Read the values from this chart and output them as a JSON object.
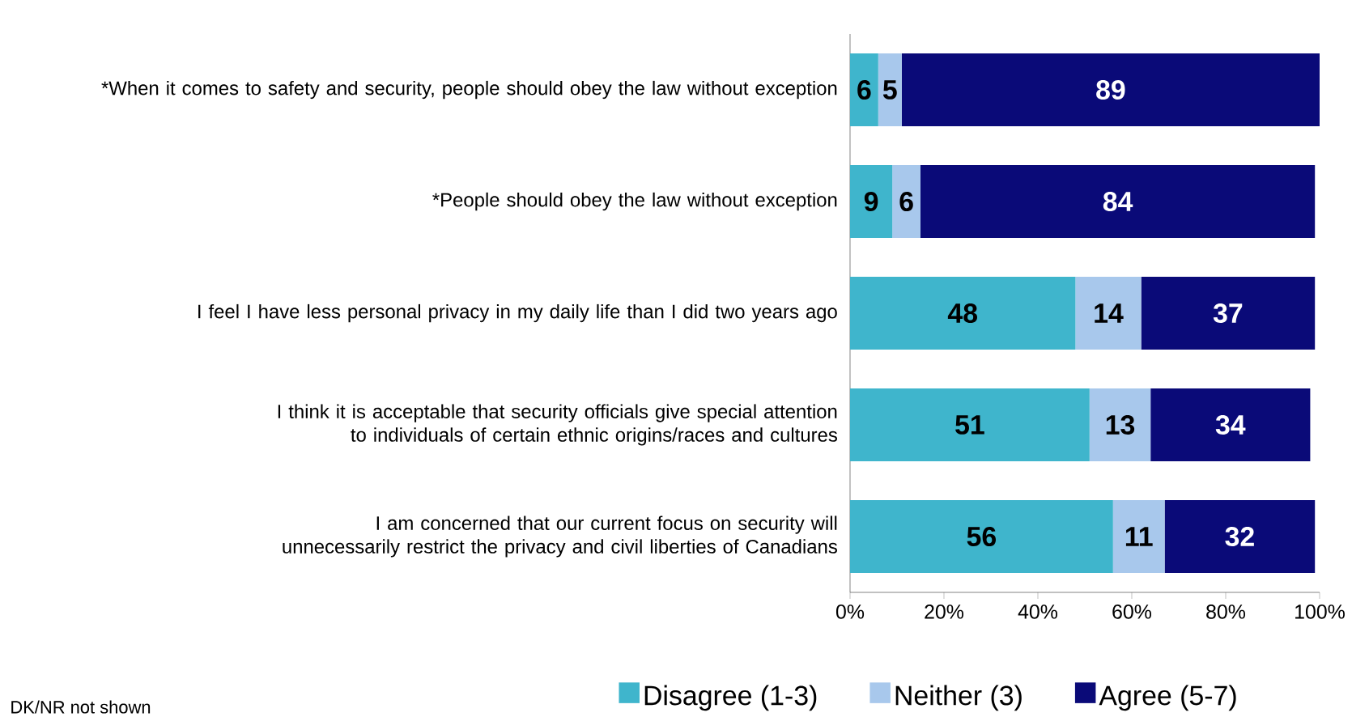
{
  "chart_data": {
    "type": "bar",
    "orientation": "horizontal",
    "stacked": true,
    "categories": [
      "*When it comes to safety and security, people should obey the law without exception",
      "*People should obey the law without exception",
      "I feel I have less personal privacy in my daily life than I did two years ago",
      "I think it is acceptable that security officials give special attention to individuals of certain ethnic origins/races and cultures",
      "I am concerned that our current focus on security will unnecessarily restrict the privacy and civil liberties of Canadians"
    ],
    "series": [
      {
        "name": "Disagree (1-3)",
        "color": "#3fb5cc",
        "values": [
          6,
          9,
          48,
          51,
          56
        ]
      },
      {
        "name": "Neither (3)",
        "color": "#a8c8ec",
        "values": [
          5,
          6,
          14,
          13,
          11
        ]
      },
      {
        "name": "Agree (5-7)",
        "color": "#0a0a78",
        "values": [
          89,
          84,
          37,
          34,
          32
        ]
      }
    ],
    "xlim": [
      0,
      100
    ],
    "xticks": [
      {
        "value": 0,
        "label": "0%"
      },
      {
        "value": 20,
        "label": "20%"
      },
      {
        "value": 40,
        "label": "40%"
      },
      {
        "value": 60,
        "label": "60%"
      },
      {
        "value": 80,
        "label": "80%"
      },
      {
        "value": 100,
        "label": "100%"
      }
    ],
    "data_labels": true,
    "legend": "bottom",
    "annotations": [
      "DK/NR not shown"
    ]
  }
}
